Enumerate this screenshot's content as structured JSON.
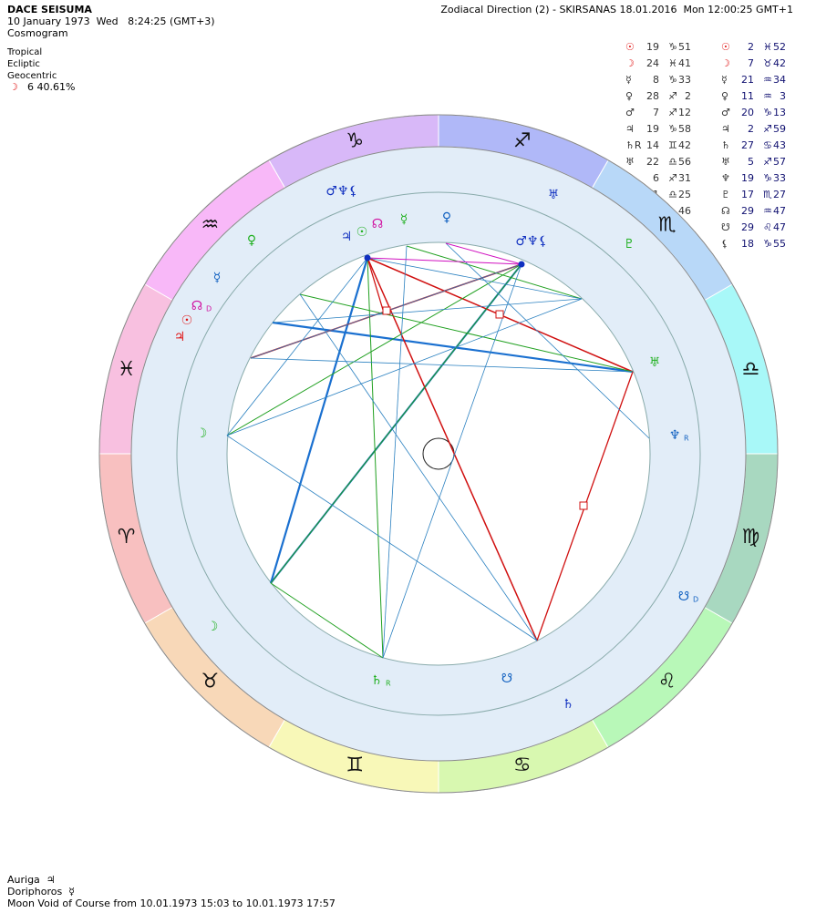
{
  "header": {
    "name": "DACE SEISUMA",
    "datetime": "10 January 1973  Wed   8:24:25 (GMT+3)",
    "chart_type": "Cosmogram",
    "settings": [
      "Tropical",
      "Ecliptic",
      "Geocentric"
    ],
    "moon_phase": {
      "glyph": "☽",
      "text": "6 40.61%"
    },
    "direction": "Zodiacal Direction (2) - SKIRSANAS 18.01.2016  Mon 12:00:25 GMT+1"
  },
  "positions": [
    {
      "left": {
        "glyph": "☉",
        "deg": "19",
        "sign": "♑",
        "min": "51"
      },
      "right": {
        "glyph": "☉",
        "deg": "2",
        "sign": "♓",
        "min": "52"
      }
    },
    {
      "left": {
        "glyph": "☽",
        "deg": "24",
        "sign": "♓",
        "min": "41"
      },
      "right": {
        "glyph": "☽",
        "deg": "7",
        "sign": "♉",
        "min": "42"
      }
    },
    {
      "left": {
        "glyph": "☿",
        "deg": "8",
        "sign": "♑",
        "min": "33"
      },
      "right": {
        "glyph": "☿",
        "deg": "21",
        "sign": "♒",
        "min": "34"
      }
    },
    {
      "left": {
        "glyph": "♀",
        "deg": "28",
        "sign": "♐",
        "min": "2"
      },
      "right": {
        "glyph": "♀",
        "deg": "11",
        "sign": "♒",
        "min": "3"
      }
    },
    {
      "left": {
        "glyph": "♂",
        "deg": "7",
        "sign": "♐",
        "min": "12"
      },
      "right": {
        "glyph": "♂",
        "deg": "20",
        "sign": "♑",
        "min": "13"
      }
    },
    {
      "left": {
        "glyph": "♃",
        "deg": "19",
        "sign": "♑",
        "min": "58"
      },
      "right": {
        "glyph": "♃",
        "deg": "2",
        "sign": "♐",
        "min": "59"
      }
    },
    {
      "left": {
        "glyph": "♄R",
        "deg": "14",
        "sign": "♊",
        "min": "42"
      },
      "right": {
        "glyph": "♄",
        "deg": "27",
        "sign": "♋",
        "min": "43"
      }
    },
    {
      "left": {
        "glyph": "♅",
        "deg": "22",
        "sign": "♎",
        "min": "56"
      },
      "right": {
        "glyph": "♅",
        "deg": "5",
        "sign": "♐",
        "min": "57"
      }
    },
    {
      "left": {
        "deg": "6",
        "sign": "♐",
        "min": "31"
      },
      "right": {
        "glyph": "♆",
        "deg": "19",
        "sign": "♑",
        "min": "33"
      }
    },
    {
      "left": {
        "deg": "1",
        "sign": "♎",
        "min": "25"
      },
      "right": {
        "glyph": "♇",
        "deg": "17",
        "sign": "♏",
        "min": "27"
      }
    },
    {
      "left": {
        "min": "46"
      },
      "right": {
        "glyph": "☊",
        "deg": "29",
        "sign": "♒",
        "min": "47"
      }
    },
    {
      "right": {
        "glyph": "☋",
        "deg": "29",
        "sign": "♌",
        "min": "47"
      }
    },
    {
      "right": {
        "glyph": "⚸",
        "deg": "18",
        "sign": "♑",
        "min": "55"
      }
    }
  ],
  "zodiac": [
    {
      "glyph": "♈",
      "color": "#f8c0c0"
    },
    {
      "glyph": "♉",
      "color": "#f8d8b8"
    },
    {
      "glyph": "♊",
      "color": "#f8f8b8"
    },
    {
      "glyph": "♋",
      "color": "#d8f8b0"
    },
    {
      "glyph": "♌",
      "color": "#b8f8b8"
    },
    {
      "glyph": "♍",
      "color": "#a8d8c0"
    },
    {
      "glyph": "♎",
      "color": "#a8f8f8"
    },
    {
      "glyph": "♏",
      "color": "#b8d8f8"
    },
    {
      "glyph": "♐",
      "color": "#b0b8f8"
    },
    {
      "glyph": "♑",
      "color": "#d8b8f8"
    },
    {
      "glyph": "♒",
      "color": "#f8b8f8"
    },
    {
      "glyph": "♓",
      "color": "#f8c0e0"
    }
  ],
  "wheel": {
    "outer": [
      {
        "glyph": "♂♆⚸",
        "color": "#1030c0"
      },
      {
        "glyph": "♅",
        "color": "#1030c0"
      },
      {
        "glyph": "♇",
        "color": "#20b020"
      },
      {
        "glyph": "☋",
        "suffix": "D",
        "color": "#1060c0"
      },
      {
        "glyph": "♄",
        "color": "#1030c0"
      },
      {
        "glyph": "☽",
        "color": "#20b020"
      },
      {
        "glyph": "☉",
        "color": "#e01010"
      },
      {
        "glyph": "♃",
        "color": "#e01010"
      },
      {
        "glyph": "☊",
        "suffix": "D",
        "color": "#d010a0"
      },
      {
        "glyph": "☿",
        "color": "#1060c0"
      },
      {
        "glyph": "♀",
        "color": "#20b020"
      }
    ],
    "inner": [
      {
        "glyph": "♃",
        "color": "#1030c0"
      },
      {
        "glyph": "☉",
        "color": "#20b020"
      },
      {
        "glyph": "☊",
        "color": "#d010a0"
      },
      {
        "glyph": "☿",
        "color": "#20b020"
      },
      {
        "glyph": "♀",
        "color": "#1060c0"
      },
      {
        "glyph": "♂♆⚸",
        "color": "#1030c0"
      },
      {
        "glyph": "♅",
        "color": "#20b020"
      },
      {
        "glyph": "♆",
        "suffix": "R",
        "color": "#1060c0"
      },
      {
        "glyph": "☋",
        "color": "#1060c0"
      },
      {
        "glyph": "♄",
        "suffix": "R",
        "color": "#20b020"
      },
      {
        "glyph": "☽",
        "color": "#20b020"
      }
    ]
  },
  "footer": {
    "lines": [
      "Auriga  ♃",
      "Doriphoros  ☿",
      "Moon Void of Course from 10.01.1973 15:03 to 10.01.1973 17:57"
    ]
  }
}
